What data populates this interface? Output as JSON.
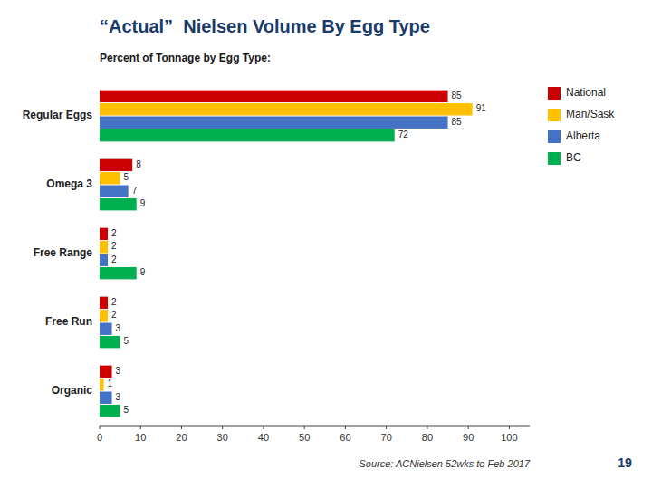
{
  "chart_data": {
    "type": "bar",
    "orientation": "horizontal",
    "title": "“Actual”  Nielsen Volume By Egg Type",
    "subtitle": "Percent of Tonnage by Egg Type:",
    "annotations": [
      "Source: ACNielsen 52wks to Feb 2017",
      "19"
    ],
    "categories": [
      "Regular Eggs",
      "Omega 3",
      "Free Range",
      "Free Run",
      "Organic"
    ],
    "series": [
      {
        "name": "National",
        "color": "#cc0000",
        "values": [
          85,
          8,
          2,
          2,
          3
        ]
      },
      {
        "name": "Man/Sask",
        "color": "#ffc000",
        "values": [
          91,
          5,
          2,
          2,
          1
        ]
      },
      {
        "name": "Alberta",
        "color": "#4472c4",
        "values": [
          85,
          7,
          2,
          3,
          3
        ]
      },
      {
        "name": "BC",
        "color": "#00b050",
        "values": [
          72,
          9,
          9,
          5,
          5
        ]
      }
    ],
    "xlim": [
      0,
      105
    ],
    "xticks": [
      0,
      10,
      20,
      30,
      40,
      50,
      60,
      70,
      80,
      90,
      100
    ],
    "grid": false,
    "legend": "upper right",
    "data_labels": true
  }
}
